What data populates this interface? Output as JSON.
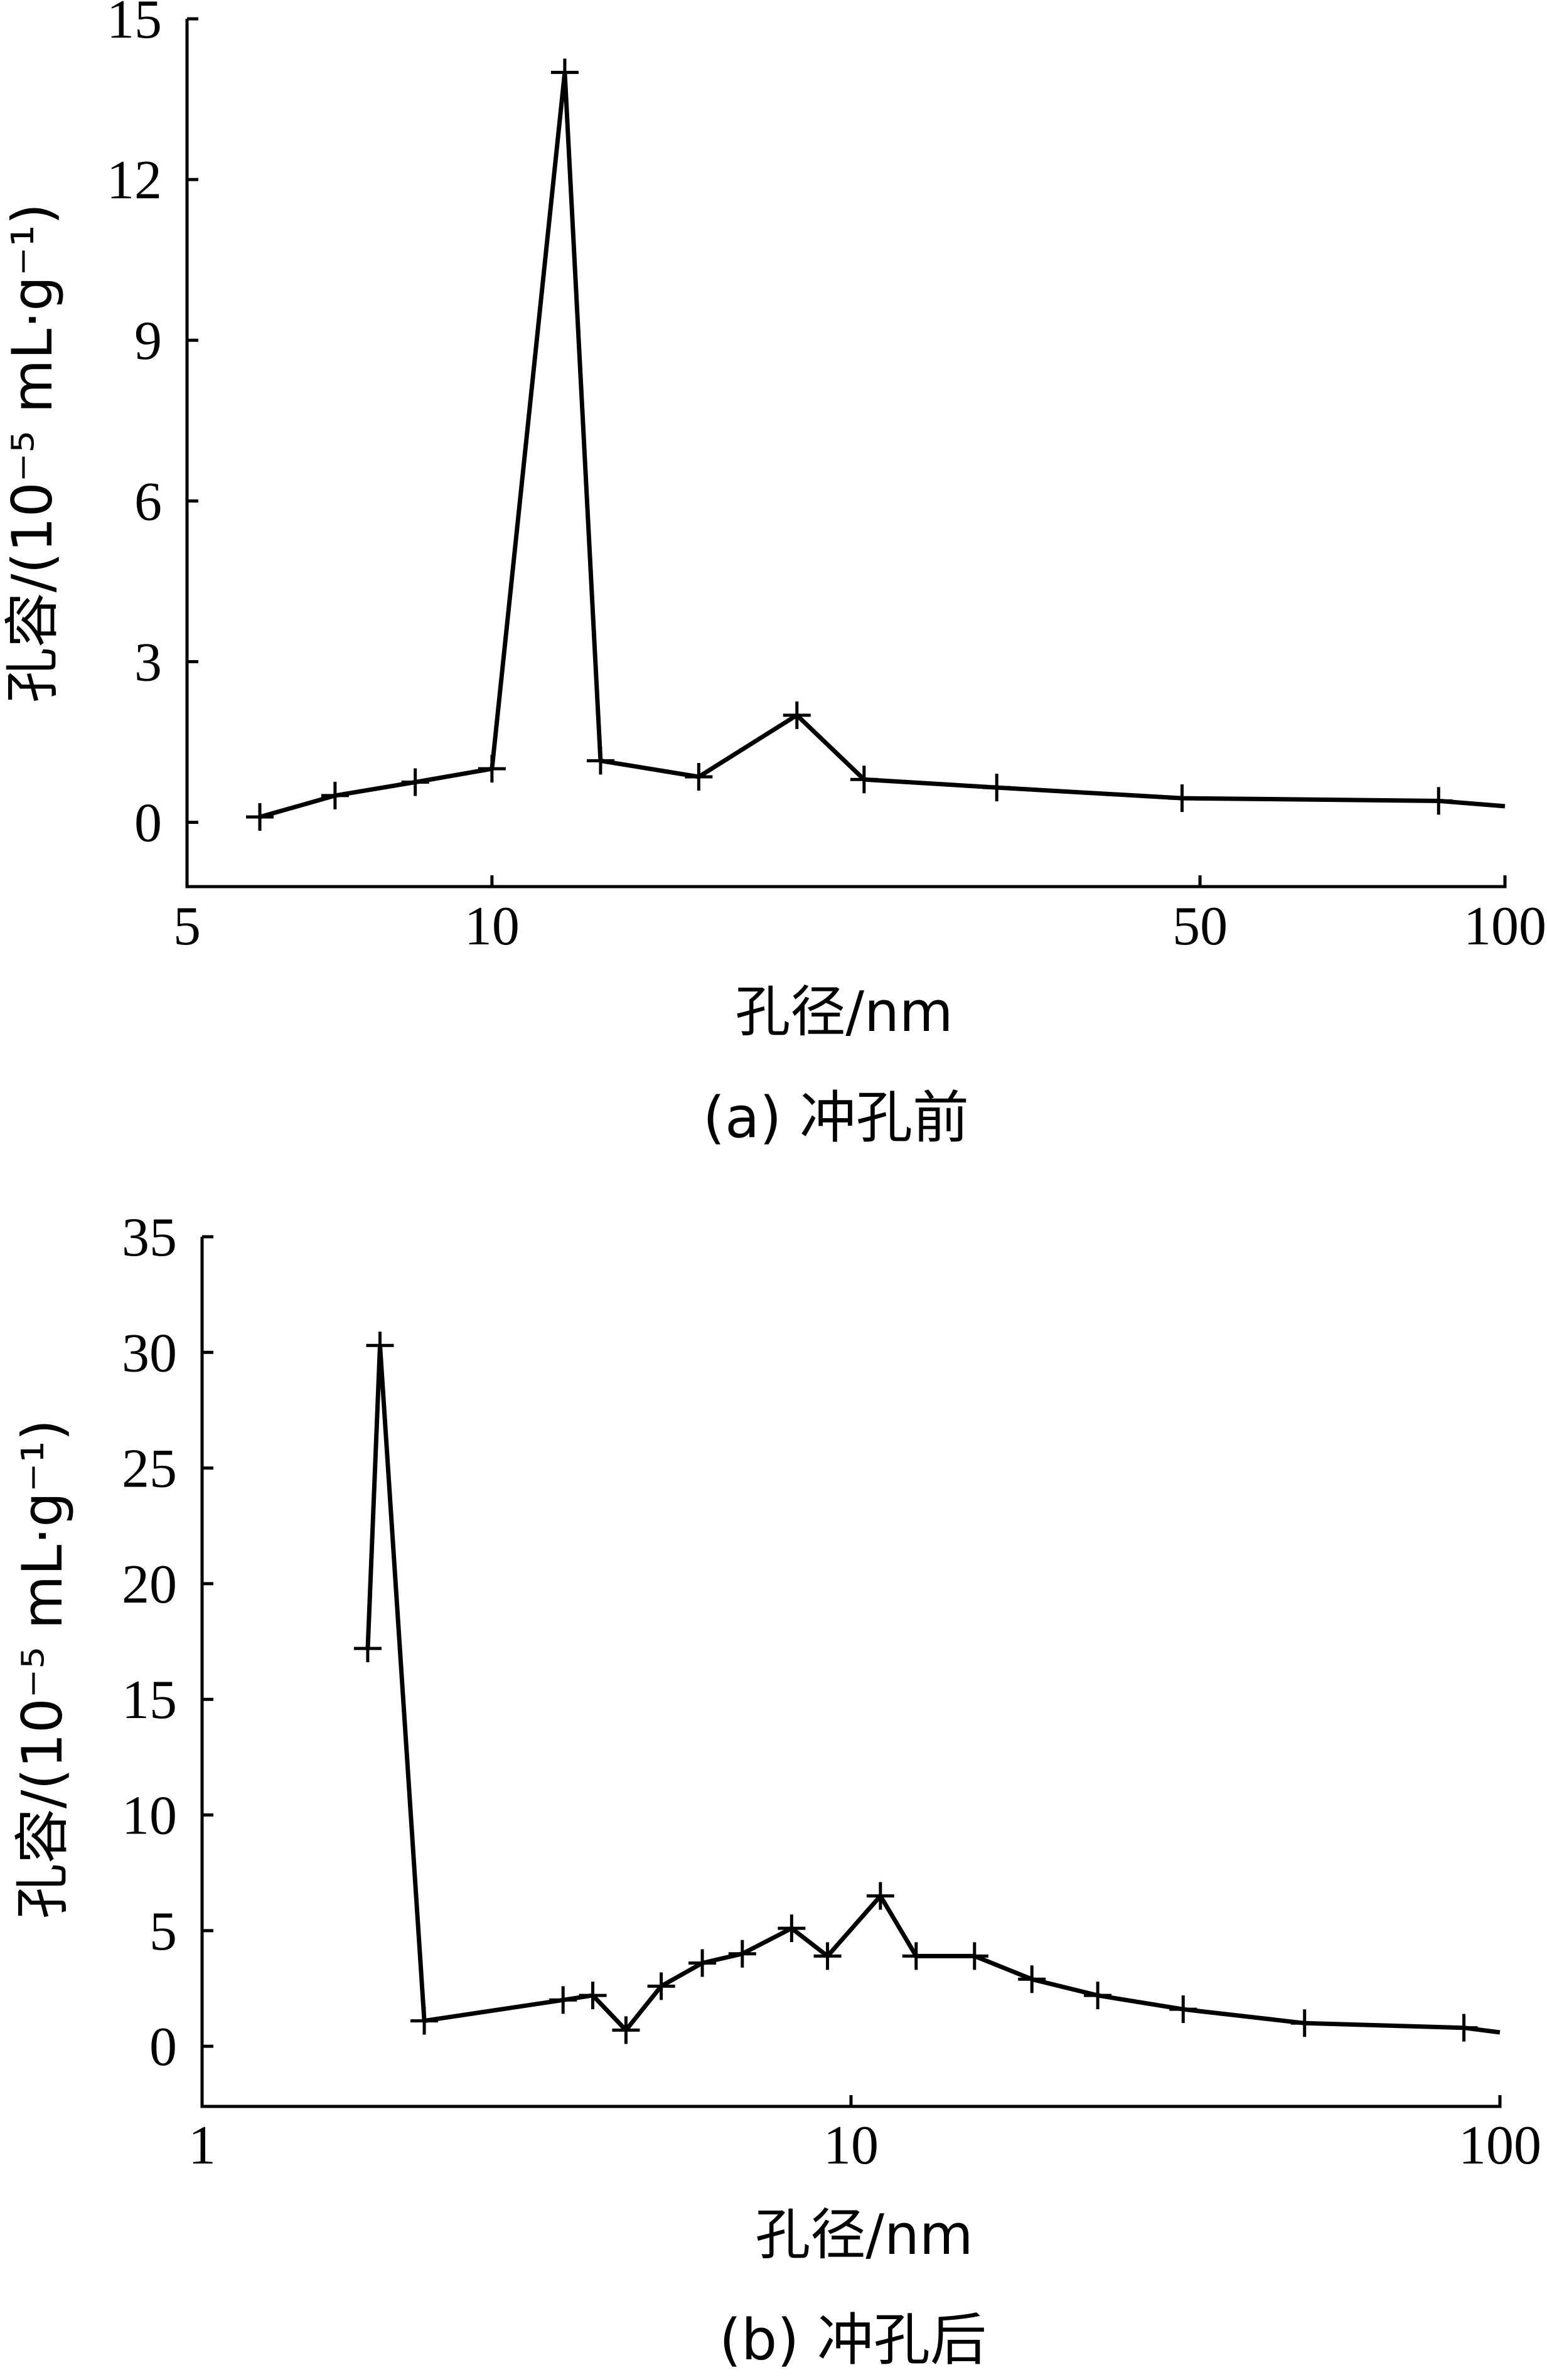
{
  "chart_data": [
    {
      "type": "line",
      "caption": "(a) 冲孔前",
      "xlabel": "孔径/nm",
      "ylabel": "孔容/(10⁻⁵ mL·g⁻¹)",
      "x_scale": "log",
      "xlim": [
        5,
        100
      ],
      "ylim": [
        -1.2,
        15
      ],
      "x_ticks": [
        5,
        10,
        50,
        100
      ],
      "y_ticks": [
        0,
        3,
        6,
        9,
        12,
        15
      ],
      "grid": false,
      "series": [
        {
          "x": [
            5.9,
            7.0,
            8.4,
            10.0,
            11.8,
            12.8,
            16.0,
            20.0,
            23.3,
            31.5,
            48.0,
            86.0,
            100.0
          ],
          "y": [
            0.1,
            0.5,
            0.75,
            1.0,
            14.0,
            1.15,
            0.85,
            2.0,
            0.8,
            0.65,
            0.45,
            0.4,
            0.3
          ],
          "marked": [
            true,
            true,
            true,
            true,
            true,
            true,
            true,
            true,
            true,
            true,
            true,
            true,
            false
          ]
        }
      ]
    },
    {
      "type": "line",
      "caption": "(b) 冲孔后",
      "xlabel": "孔径/nm",
      "ylabel": "孔容/(10⁻⁵ mL·g⁻¹)",
      "x_scale": "log",
      "xlim": [
        1,
        100
      ],
      "ylim": [
        -2.6,
        35
      ],
      "x_ticks": [
        1,
        10,
        100
      ],
      "y_ticks": [
        0,
        5,
        10,
        15,
        20,
        25,
        30,
        35
      ],
      "grid": false,
      "series": [
        {
          "x": [
            1.8,
            1.88,
            2.2,
            3.6,
            4.0,
            4.5,
            5.1,
            5.9,
            6.8,
            8.1,
            9.2,
            11.1,
            12.6,
            15.5,
            19.0,
            24.0,
            32.5,
            50.0,
            88.0,
            100.0
          ],
          "y": [
            17.2,
            30.3,
            1.1,
            2.0,
            2.2,
            0.7,
            2.6,
            3.6,
            4.0,
            5.1,
            3.9,
            6.5,
            3.9,
            3.9,
            2.9,
            2.2,
            1.6,
            1.0,
            0.8,
            0.6
          ],
          "marked": [
            true,
            true,
            true,
            true,
            true,
            true,
            true,
            true,
            true,
            true,
            true,
            true,
            true,
            true,
            true,
            true,
            true,
            true,
            true,
            false
          ]
        }
      ]
    }
  ]
}
